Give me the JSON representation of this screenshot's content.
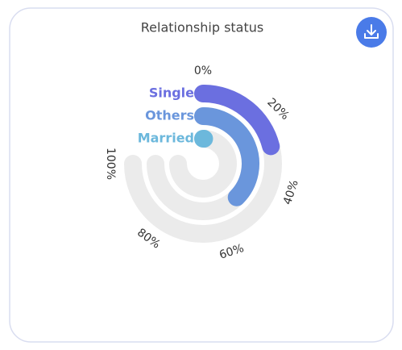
{
  "chart_data": {
    "type": "radialBar",
    "title": "Relationship status",
    "categories": [
      "Single",
      "Others",
      "Married"
    ],
    "series": [
      {
        "name": "Relationship status",
        "values": [
          28,
          50,
          1
        ]
      }
    ],
    "colors": [
      "#6b6fe0",
      "#6a96dc",
      "#6cb8dc"
    ],
    "track_color": "#ebebeb",
    "xlim": [
      0,
      100
    ],
    "xticks": [
      {
        "value": 0,
        "label": "0%"
      },
      {
        "value": 20,
        "label": "20%"
      },
      {
        "value": 40,
        "label": "40%"
      },
      {
        "value": 60,
        "label": "60%"
      },
      {
        "value": 80,
        "label": "80%"
      },
      {
        "value": 100,
        "label": "100%"
      }
    ]
  }
}
